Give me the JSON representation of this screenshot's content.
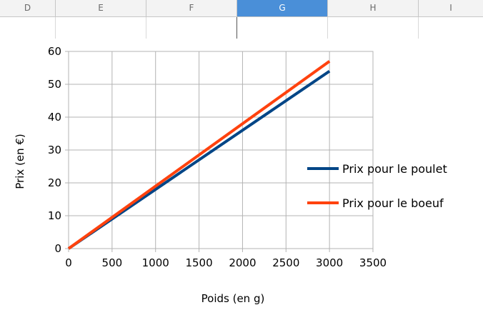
{
  "spreadsheet": {
    "columns": [
      {
        "label": "D",
        "active": false
      },
      {
        "label": "E",
        "active": false
      },
      {
        "label": "F",
        "active": false
      },
      {
        "label": "G",
        "active": true
      },
      {
        "label": "H",
        "active": false
      },
      {
        "label": "I",
        "active": false
      }
    ]
  },
  "chart_data": {
    "type": "line",
    "title": "",
    "xlabel": "Poids (en g)",
    "ylabel": "Prix (en €)",
    "xlim": [
      0,
      3500
    ],
    "ylim": [
      0,
      60
    ],
    "x_ticks": [
      "0",
      "500",
      "1000",
      "1500",
      "2000",
      "2500",
      "3000",
      "3500"
    ],
    "y_ticks": [
      "0",
      "10",
      "20",
      "30",
      "40",
      "50",
      "60"
    ],
    "grid": true,
    "legend_position": "right",
    "series": [
      {
        "name": "Prix pour le poulet",
        "color": "#004586",
        "x": [
          0,
          3000
        ],
        "y": [
          0,
          54
        ]
      },
      {
        "name": "Prix pour le boeuf",
        "color": "#ff420e",
        "x": [
          0,
          3000
        ],
        "y": [
          0,
          57
        ]
      }
    ]
  }
}
